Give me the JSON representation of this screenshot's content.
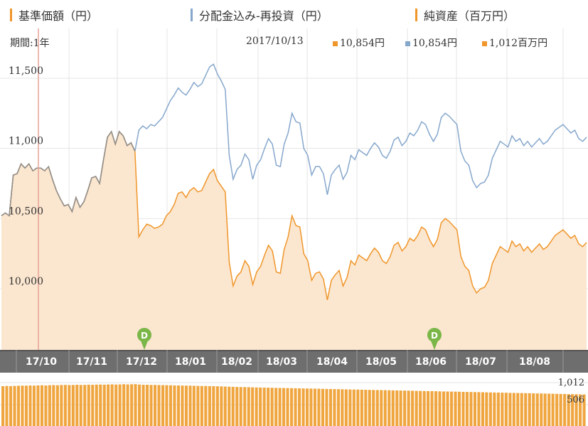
{
  "legend": {
    "nav_label": "基準価額（円）",
    "reinvest_label": "分配金込み-再投資（円）",
    "assets_label": "純資産（百万円）"
  },
  "info": {
    "period": "期間:1年",
    "date": "2017/10/13",
    "nav_value": "10,854円",
    "reinvest_value": "10,854円",
    "assets_value": "1,012百万円"
  },
  "colors": {
    "nav": "#f0962a",
    "nav_fill": "#fbe6cf",
    "reinvest": "#86a7cc",
    "assets_bar": "#f0a640",
    "axis_bar": "#6e6e6e",
    "axis_bar_dark": "#545454",
    "marker": "#7ab648",
    "cursor": "#e8a098"
  },
  "chart_data": {
    "type": "line",
    "x_tick_labels": [
      "17/10",
      "17/11",
      "17/12",
      "18/01",
      "18/02",
      "18/03",
      "18/04",
      "18/05",
      "18/06",
      "18/07",
      "18/08"
    ],
    "y_tick_labels": [
      "11,500",
      "11,000",
      "10,500",
      "10,000"
    ],
    "ylim": [
      9700,
      11900
    ],
    "dividend_marker_label": "D",
    "dividend_markers": [
      "17/12",
      "18/06"
    ],
    "volume_labels": [
      "1,012",
      "506"
    ],
    "volume_max": 1012,
    "series": [
      {
        "name": "基準価額（円）",
        "values": [
          10520,
          10540,
          10520,
          10810,
          10820,
          10890,
          10860,
          10890,
          10840,
          10860,
          10860,
          10840,
          10870,
          10780,
          10700,
          10640,
          10590,
          10600,
          10550,
          10650,
          10580,
          10620,
          10700,
          10790,
          10800,
          10750,
          10920,
          11080,
          11120,
          11030,
          11120,
          11090,
          11020,
          11040,
          10980,
          10370,
          10420,
          10460,
          10450,
          10430,
          10440,
          10460,
          10520,
          10550,
          10600,
          10680,
          10690,
          10650,
          10700,
          10720,
          10690,
          10700,
          10760,
          10820,
          10850,
          10770,
          10730,
          10690,
          10190,
          10020,
          10090,
          10120,
          10200,
          10160,
          10030,
          10120,
          10160,
          10240,
          10310,
          10270,
          10120,
          10110,
          10280,
          10370,
          10520,
          10450,
          10440,
          10250,
          10200,
          10060,
          10110,
          10120,
          10070,
          9920,
          10060,
          10100,
          10130,
          10020,
          10080,
          10200,
          10170,
          10240,
          10220,
          10200,
          10250,
          10290,
          10260,
          10200,
          10180,
          10230,
          10310,
          10330,
          10270,
          10300,
          10360,
          10340,
          10380,
          10440,
          10420,
          10350,
          10300,
          10350,
          10470,
          10500,
          10480,
          10450,
          10420,
          10230,
          10160,
          10130,
          10020,
          9970,
          10000,
          10010,
          10060,
          10180,
          10240,
          10300,
          10280,
          10260,
          10340,
          10300,
          10320,
          10270,
          10300,
          10260,
          10290,
          10320,
          10280,
          10300,
          10340,
          10380,
          10400,
          10420,
          10390,
          10360,
          10380,
          10320,
          10300,
          10330
        ]
      },
      {
        "name": "分配金込み-再投資（円）",
        "values": [
          10520,
          10540,
          10520,
          10810,
          10820,
          10890,
          10860,
          10890,
          10840,
          10860,
          10860,
          10840,
          10870,
          10780,
          10700,
          10640,
          10590,
          10600,
          10550,
          10650,
          10580,
          10620,
          10700,
          10790,
          10800,
          10750,
          10920,
          11080,
          11120,
          11030,
          11120,
          11090,
          11020,
          11040,
          10980,
          11130,
          11160,
          11140,
          11170,
          11160,
          11190,
          11220,
          11280,
          11340,
          11380,
          11430,
          11400,
          11380,
          11420,
          11470,
          11440,
          11460,
          11520,
          11580,
          11600,
          11530,
          11480,
          11420,
          10950,
          10780,
          10850,
          10880,
          10960,
          10920,
          10780,
          10880,
          10920,
          11000,
          11070,
          11030,
          10880,
          10870,
          11030,
          11110,
          11250,
          11190,
          11180,
          11000,
          10950,
          10810,
          10870,
          10870,
          10820,
          10670,
          10810,
          10850,
          10880,
          10780,
          10830,
          10950,
          10920,
          10990,
          10970,
          10950,
          11000,
          11040,
          11010,
          10950,
          10930,
          10980,
          11060,
          11080,
          11020,
          11050,
          11110,
          11090,
          11130,
          11190,
          11170,
          11100,
          11050,
          11100,
          11220,
          11250,
          11230,
          11200,
          11170,
          10980,
          10910,
          10880,
          10770,
          10720,
          10750,
          10760,
          10810,
          10930,
          10990,
          11050,
          11030,
          11010,
          11090,
          11050,
          11070,
          11020,
          11050,
          11010,
          11040,
          11070,
          11030,
          11050,
          11090,
          11130,
          11150,
          11170,
          11140,
          11110,
          11130,
          11070,
          11050,
          11080
        ]
      }
    ],
    "volume": [
      960,
      965,
      962,
      968,
      970,
      975,
      972,
      978,
      975,
      980,
      982,
      978,
      985,
      988,
      984,
      990,
      992,
      988,
      990,
      994,
      990,
      992,
      996,
      994,
      998,
      1000,
      996,
      1002,
      1005,
      1000,
      1004,
      1008,
      1003,
      1006,
      1010,
      1000,
      995,
      994,
      990,
      992,
      988,
      986,
      984,
      983,
      980,
      978,
      976,
      975,
      972,
      970,
      968,
      966,
      965,
      962,
      960,
      958,
      955,
      952,
      948,
      945,
      942,
      940,
      938,
      936,
      933,
      930,
      928,
      926,
      924,
      922,
      920,
      918,
      916,
      914,
      912,
      910,
      908,
      906,
      904,
      902,
      900,
      898,
      896,
      894,
      892,
      890,
      888,
      886,
      884,
      882,
      880,
      878,
      876,
      874,
      872,
      870,
      868,
      866,
      864,
      862,
      860,
      858,
      856,
      854,
      852,
      850,
      848,
      846,
      844,
      842,
      840,
      838,
      836,
      834,
      832,
      830,
      828,
      826,
      824,
      822,
      820,
      818,
      816,
      814,
      812,
      810,
      808,
      806,
      804,
      802,
      800,
      798,
      796,
      794,
      792,
      790,
      788,
      786,
      784,
      782,
      780,
      778,
      776,
      774,
      772,
      770,
      768,
      766,
      764,
      762
    ]
  }
}
